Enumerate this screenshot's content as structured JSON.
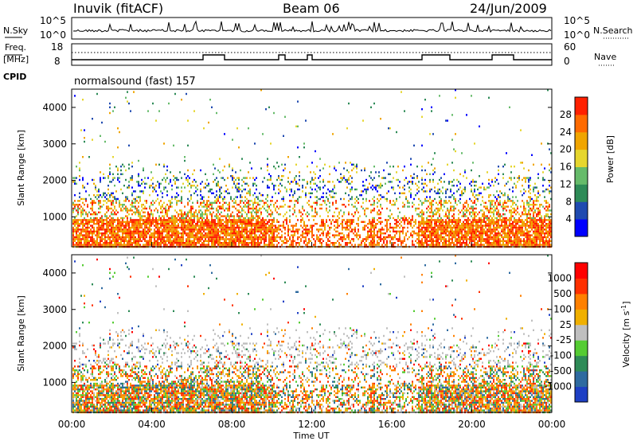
{
  "header": {
    "station": "Inuvik (fitACF)",
    "beam": "Beam 06",
    "date": "24/Jun/2009"
  },
  "panels": {
    "nsky": {
      "left_label": "N.Sky",
      "ticks_left": [
        "10^5",
        "10^0"
      ],
      "right_label": "N.Search",
      "ticks_right": [
        "10^5",
        "10^0"
      ]
    },
    "freq": {
      "left_label_top": "Freq.",
      "left_label_bottom": "[MHz]",
      "ticks_left": [
        "18",
        "8"
      ],
      "right_label": "Nave",
      "ticks_right": [
        "60",
        "0"
      ]
    },
    "cpid": {
      "label": "CPID",
      "text": "normalsound (fast) 157"
    }
  },
  "chart_data": [
    {
      "type": "heatmap",
      "name": "power",
      "ylabel": "Slant Range [km]",
      "ylim": [
        180,
        4500
      ],
      "yticks": [
        1000,
        2000,
        3000,
        4000
      ],
      "colorbar_label": "Power [dB]",
      "colorbar_ticks": [
        "4",
        "8",
        "12",
        "16",
        "20",
        "24",
        "28"
      ],
      "colors": [
        "#0000ff",
        "#1f4ab0",
        "#2e8b57",
        "#66bb6a",
        "#e6d62e",
        "#f0a500",
        "#ff6a00",
        "#ff2000"
      ]
    },
    {
      "type": "heatmap",
      "name": "velocity",
      "ylabel": "Slant Range [km]",
      "ylim": [
        180,
        4500
      ],
      "yticks": [
        1000,
        2000,
        3000,
        4000
      ],
      "colorbar_label": "Velocity [m s",
      "colorbar_label_sup": "-1",
      "colorbar_label_end": "]",
      "colorbar_ticks": [
        "1000",
        "500",
        "100",
        "25",
        "-25",
        "-100",
        "-500",
        "-1000"
      ],
      "colors": [
        "#1e3fc4",
        "#2e6aa0",
        "#2e8b57",
        "#55cc33",
        "#bfbfbf",
        "#f0b000",
        "#ff8000",
        "#ff3000",
        "#ff0000"
      ]
    }
  ],
  "xaxis": {
    "ticks": [
      "00:00",
      "04:00",
      "08:00",
      "12:00",
      "16:00",
      "20:00",
      "00:00"
    ],
    "label": "Time UT"
  }
}
